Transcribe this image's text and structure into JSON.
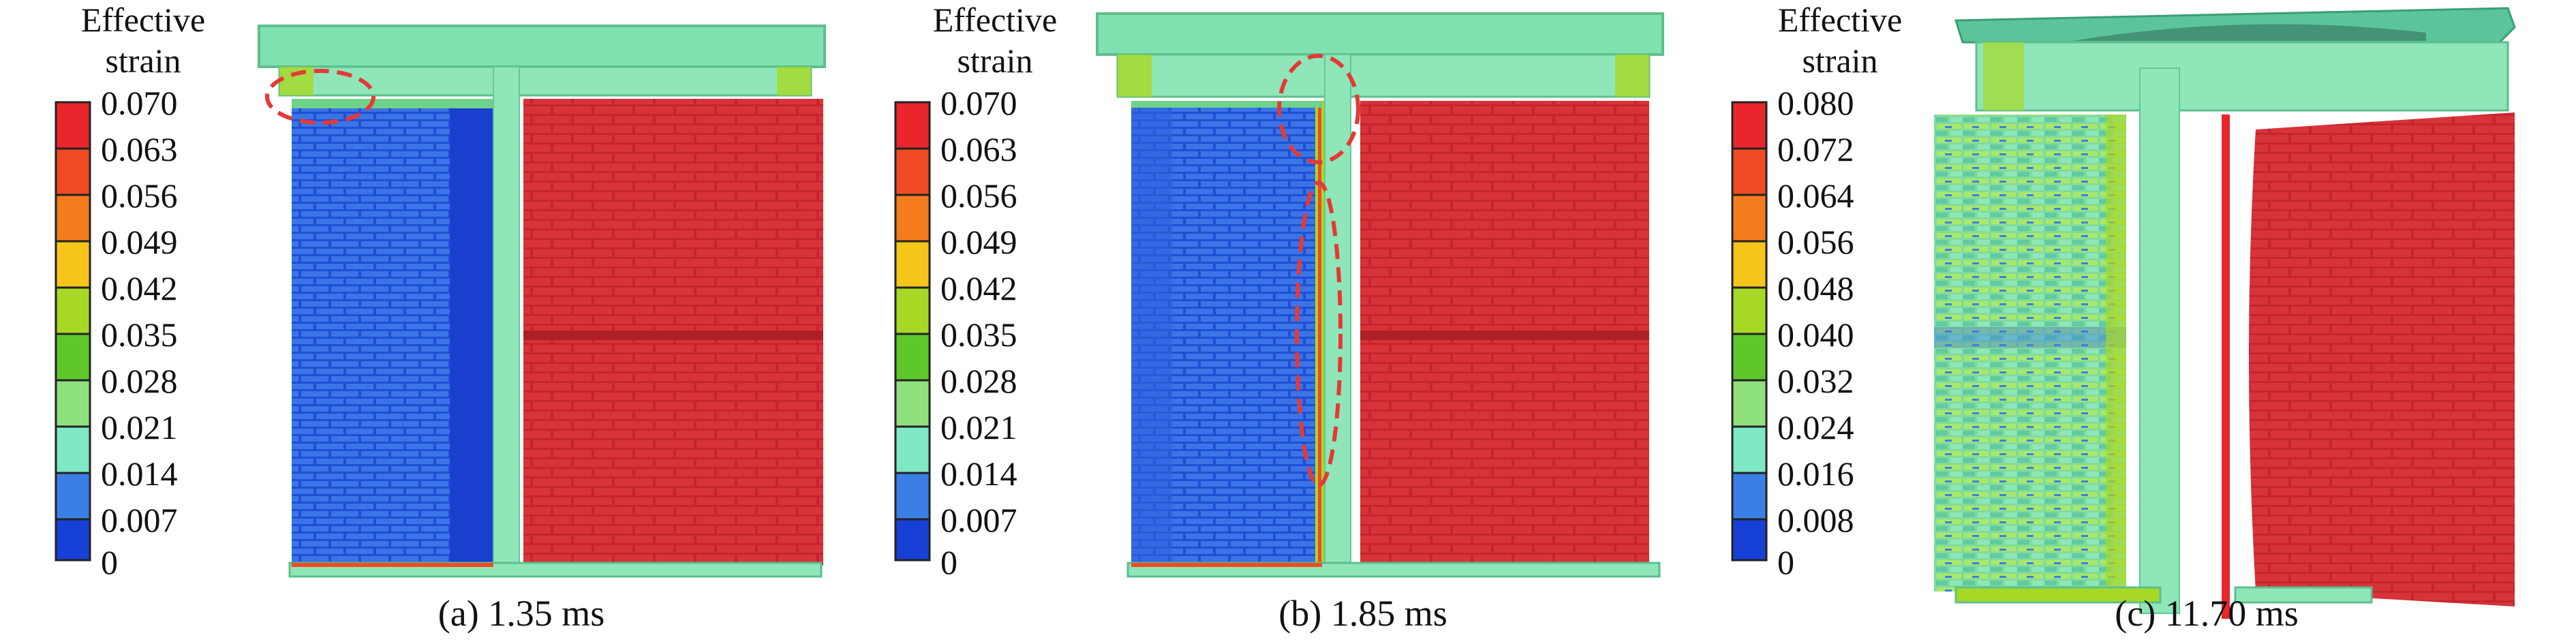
{
  "panels": [
    {
      "legend_title_1": "Effective",
      "legend_title_2": "strain",
      "ticks": [
        "0.070",
        "0.063",
        "0.056",
        "0.049",
        "0.042",
        "0.035",
        "0.028",
        "0.021",
        "0.014",
        "0.007",
        "0"
      ],
      "caption": "(a) 1.35 ms",
      "left_wall_level": 0.008,
      "right_wall_level": 0.07,
      "column_level": 0.024
    },
    {
      "legend_title_1": "Effective",
      "legend_title_2": "strain",
      "ticks": [
        "0.070",
        "0.063",
        "0.056",
        "0.049",
        "0.042",
        "0.035",
        "0.028",
        "0.021",
        "0.014",
        "0.007",
        "0"
      ],
      "caption": "(b) 1.85 ms",
      "left_wall_level": 0.012,
      "right_wall_level": 0.07,
      "column_level": 0.025
    },
    {
      "legend_title_1": "Effective",
      "legend_title_2": "strain",
      "ticks": [
        "0.080",
        "0.072",
        "0.064",
        "0.056",
        "0.048",
        "0.040",
        "0.032",
        "0.024",
        "0.016",
        "0.008",
        "0"
      ],
      "caption": "(c) 11.70 ms",
      "left_wall_level": 0.04,
      "right_wall_level": 0.08,
      "column_level": 0.028
    }
  ],
  "colors": {
    "band_1": "#e8262b",
    "band_2": "#f04b24",
    "band_3": "#f47c1c",
    "band_4": "#f6c51a",
    "band_5": "#a8d826",
    "band_6": "#5ec82b",
    "band_7": "#36b83a",
    "band_8": "#8ee07c",
    "band_9": "#7fe8c4",
    "band_10": "#3b7fe6",
    "band_11": "#1740d6",
    "marker": "#e53935",
    "brick_red": "#c3262c",
    "brick_blue": "#2f63e0",
    "brick_mixed": "#8fdca0",
    "column": "#8fe6b8",
    "slab": "#7fe0b0"
  }
}
